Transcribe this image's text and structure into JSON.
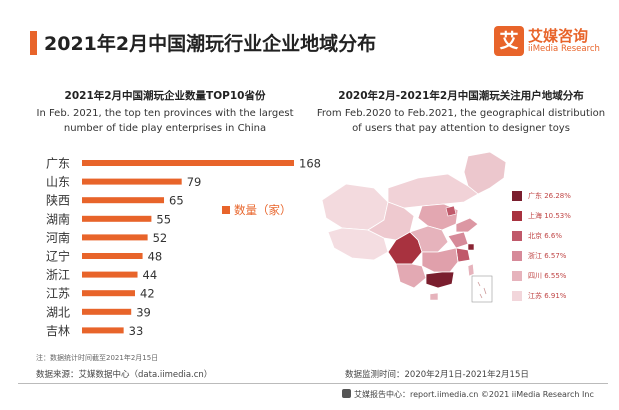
{
  "header": {
    "title": "2021年2月中国潮玩行业企业地域分布"
  },
  "logo": {
    "mark": "艾",
    "name_cn": "艾媒咨询",
    "name_en": "iiMedia Research"
  },
  "left": {
    "title": "2021年2月中国潮玩企业数量TOP10省份",
    "desc_line1": "In Feb. 2021, the top ten provinces with the largest",
    "desc_line2": "number of tide play enterprises in China",
    "legend_label": "数量（家）"
  },
  "right": {
    "title": "2020年2月-2021年2月中国潮玩关注用户地域分布",
    "desc_line1": "From Feb.2020 to Feb.2021,  the geographical distribution",
    "desc_line2": "of users that pay attention to designer toys",
    "legend": [
      {
        "label": "广东  26.28%",
        "color": "#7a1e2e"
      },
      {
        "label": "上海  10.53%",
        "color": "#a8323f"
      },
      {
        "label": "北京  6.6%",
        "color": "#c0596a"
      },
      {
        "label": "浙江  6.57%",
        "color": "#d68a99"
      },
      {
        "label": "四川  6.55%",
        "color": "#e6b3bc"
      },
      {
        "label": "江苏  6.91%",
        "color": "#f2d6db"
      }
    ]
  },
  "chart_data": {
    "type": "bar",
    "orientation": "horizontal",
    "categories": [
      "广东",
      "山东",
      "陕西",
      "湖南",
      "河南",
      "辽宁",
      "浙江",
      "江苏",
      "湖北",
      "吉林"
    ],
    "series": [
      {
        "name": "数量（家）",
        "values": [
          168,
          79,
          65,
          55,
          52,
          48,
          44,
          42,
          39,
          33
        ]
      }
    ],
    "title": "2021年2月中国潮玩企业数量TOP10省份",
    "xlim": [
      0,
      168
    ],
    "color": "#e8642a",
    "grid": false,
    "legend_position": "right"
  },
  "footer": {
    "note": "注：数据统计时间截至2021年2月15日",
    "source": "数据来源：艾媒数据中心（data.iimedia.cn）",
    "monitor": "数据监测时间：2020年2月1日-2021年2月15日",
    "copyright": "艾媒报告中心：report.iimedia.cn  ©2021  iiMedia Research  Inc"
  }
}
